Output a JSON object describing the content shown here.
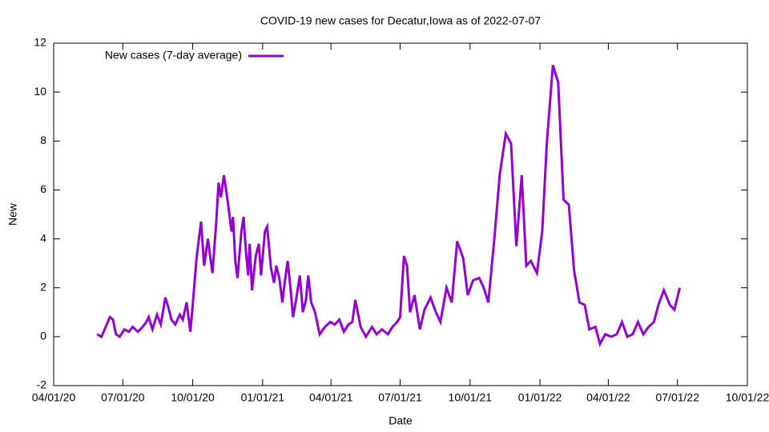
{
  "chart_data": {
    "type": "line",
    "title": "COVID-19 new cases for Decatur,Iowa as of 2022-07-07",
    "xlabel": "Date",
    "ylabel": "New",
    "legend": "top-left",
    "xlim": [
      "2020-04-01",
      "2022-10-01"
    ],
    "xticks": [
      {
        "value": "2020-04-01",
        "label": "04/01/20"
      },
      {
        "value": "2020-07-01",
        "label": "07/01/20"
      },
      {
        "value": "2020-10-01",
        "label": "10/01/20"
      },
      {
        "value": "2021-01-01",
        "label": "01/01/21"
      },
      {
        "value": "2021-04-01",
        "label": "04/01/21"
      },
      {
        "value": "2021-07-01",
        "label": "07/01/21"
      },
      {
        "value": "2021-10-01",
        "label": "10/01/21"
      },
      {
        "value": "2022-01-01",
        "label": "01/01/22"
      },
      {
        "value": "2022-04-01",
        "label": "04/01/22"
      },
      {
        "value": "2022-07-01",
        "label": "07/01/22"
      },
      {
        "value": "2022-10-01",
        "label": "10/01/22"
      }
    ],
    "ylim": [
      -2,
      12
    ],
    "yticks": [
      -2,
      0,
      2,
      4,
      6,
      8,
      10,
      12
    ],
    "x": [
      "2020-05-28",
      "2020-06-03",
      "2020-06-07",
      "2020-06-14",
      "2020-06-18",
      "2020-06-22",
      "2020-06-27",
      "2020-07-03",
      "2020-07-09",
      "2020-07-14",
      "2020-07-21",
      "2020-07-27",
      "2020-08-01",
      "2020-08-04",
      "2020-08-09",
      "2020-08-15",
      "2020-08-20",
      "2020-08-26",
      "2020-08-30",
      "2020-09-03",
      "2020-09-08",
      "2020-09-14",
      "2020-09-18",
      "2020-09-23",
      "2020-09-28",
      "2020-10-01",
      "2020-10-06",
      "2020-10-12",
      "2020-10-16",
      "2020-10-21",
      "2020-10-27",
      "2020-11-01",
      "2020-11-04",
      "2020-11-07",
      "2020-11-11",
      "2020-11-14",
      "2020-11-17",
      "2020-11-21",
      "2020-11-23",
      "2020-11-26",
      "2020-11-29",
      "2020-12-04",
      "2020-12-07",
      "2020-12-10",
      "2020-12-13",
      "2020-12-15",
      "2020-12-18",
      "2020-12-23",
      "2020-12-27",
      "2020-12-30",
      "2021-01-04",
      "2021-01-07",
      "2021-01-12",
      "2021-01-16",
      "2021-01-19",
      "2021-01-23",
      "2021-01-27",
      "2021-01-30",
      "2021-02-03",
      "2021-02-07",
      "2021-02-10",
      "2021-02-14",
      "2021-02-19",
      "2021-02-23",
      "2021-02-27",
      "2021-03-02",
      "2021-03-06",
      "2021-03-11",
      "2021-03-17",
      "2021-03-24",
      "2021-03-31",
      "2021-04-06",
      "2021-04-12",
      "2021-04-18",
      "2021-04-24",
      "2021-04-29",
      "2021-05-03",
      "2021-05-10",
      "2021-05-17",
      "2021-05-25",
      "2021-05-31",
      "2021-06-07",
      "2021-06-15",
      "2021-06-21",
      "2021-06-27",
      "2021-07-01",
      "2021-07-06",
      "2021-07-10",
      "2021-07-14",
      "2021-07-20",
      "2021-07-27",
      "2021-08-02",
      "2021-08-10",
      "2021-08-17",
      "2021-08-23",
      "2021-08-31",
      "2021-09-07",
      "2021-09-14",
      "2021-09-22",
      "2021-09-28",
      "2021-10-05",
      "2021-10-13",
      "2021-10-19",
      "2021-10-25",
      "2021-11-02",
      "2021-11-09",
      "2021-11-17",
      "2021-11-24",
      "2021-12-01",
      "2021-12-08",
      "2021-12-14",
      "2021-12-20",
      "2021-12-28",
      "2022-01-04",
      "2022-01-10",
      "2022-01-18",
      "2022-01-25",
      "2022-02-01",
      "2022-02-08",
      "2022-02-15",
      "2022-02-22",
      "2022-03-01",
      "2022-03-07",
      "2022-03-15",
      "2022-03-21",
      "2022-03-28",
      "2022-04-05",
      "2022-04-12",
      "2022-04-19",
      "2022-04-26",
      "2022-05-03",
      "2022-05-10",
      "2022-05-17",
      "2022-05-24",
      "2022-05-31",
      "2022-06-06",
      "2022-06-13",
      "2022-06-21",
      "2022-06-27",
      "2022-07-04"
    ],
    "series": [
      {
        "name": "New cases (7-day average)",
        "color": "#9400d3",
        "values": [
          0.1,
          0.0,
          0.3,
          0.8,
          0.7,
          0.1,
          0.0,
          0.3,
          0.2,
          0.4,
          0.2,
          0.4,
          0.6,
          0.8,
          0.3,
          0.9,
          0.5,
          1.6,
          1.2,
          0.7,
          0.5,
          0.9,
          0.7,
          1.4,
          0.2,
          1.3,
          3.2,
          4.7,
          2.9,
          4.0,
          2.6,
          4.7,
          6.3,
          5.7,
          6.6,
          6.0,
          5.3,
          4.3,
          4.9,
          3.1,
          2.4,
          4.3,
          4.9,
          3.5,
          2.5,
          3.8,
          1.9,
          3.3,
          3.8,
          2.5,
          4.3,
          4.5,
          2.8,
          2.2,
          2.9,
          2.4,
          1.4,
          2.2,
          3.1,
          1.9,
          0.8,
          1.5,
          2.5,
          1.0,
          1.5,
          2.5,
          1.4,
          1.0,
          0.1,
          0.4,
          0.6,
          0.5,
          0.7,
          0.2,
          0.5,
          0.6,
          1.5,
          0.4,
          0.0,
          0.4,
          0.1,
          0.3,
          0.1,
          0.4,
          0.6,
          0.8,
          3.3,
          2.9,
          1.0,
          1.7,
          0.3,
          1.1,
          1.6,
          1.0,
          0.6,
          2.0,
          1.4,
          3.9,
          3.2,
          1.7,
          2.3,
          2.4,
          2.0,
          1.4,
          4.0,
          6.6,
          8.3,
          7.9,
          3.7,
          6.6,
          2.9,
          3.1,
          2.6,
          4.3,
          7.9,
          11.1,
          10.4,
          5.6,
          5.4,
          2.7,
          1.4,
          1.3,
          0.3,
          0.4,
          -0.3,
          0.1,
          0.0,
          0.1,
          0.6,
          0.0,
          0.1,
          0.6,
          0.1,
          0.4,
          0.6,
          1.3,
          1.9,
          1.3,
          1.1,
          2.0
        ]
      }
    ]
  }
}
